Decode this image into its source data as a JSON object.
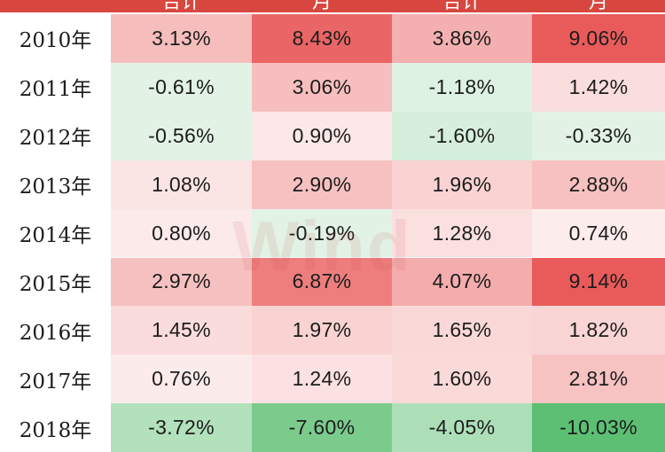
{
  "watermark": "Wind",
  "header": {
    "labels": [
      "合计",
      "月",
      "合计",
      "月"
    ]
  },
  "chart_data": {
    "type": "heatmap",
    "unit": "%",
    "rows": [
      {
        "year": "2010年",
        "values": [
          "3.13%",
          "8.43%",
          "3.86%",
          "9.06%"
        ],
        "nums": [
          3.13,
          8.43,
          3.86,
          9.06
        ]
      },
      {
        "year": "2011年",
        "values": [
          "-0.61%",
          "3.06%",
          "-1.18%",
          "1.42%"
        ],
        "nums": [
          -0.61,
          3.06,
          -1.18,
          1.42
        ]
      },
      {
        "year": "2012年",
        "values": [
          "-0.56%",
          "0.90%",
          "-1.60%",
          "-0.33%"
        ],
        "nums": [
          -0.56,
          0.9,
          -1.6,
          -0.33
        ]
      },
      {
        "year": "2013年",
        "values": [
          "1.08%",
          "2.90%",
          "1.96%",
          "2.88%"
        ],
        "nums": [
          1.08,
          2.9,
          1.96,
          2.88
        ]
      },
      {
        "year": "2014年",
        "values": [
          "0.80%",
          "-0.19%",
          "1.28%",
          "0.74%"
        ],
        "nums": [
          0.8,
          -0.19,
          1.28,
          0.74
        ]
      },
      {
        "year": "2015年",
        "values": [
          "2.97%",
          "6.87%",
          "4.07%",
          "9.14%"
        ],
        "nums": [
          2.97,
          6.87,
          4.07,
          9.14
        ]
      },
      {
        "year": "2016年",
        "values": [
          "1.45%",
          "1.97%",
          "1.65%",
          "1.82%"
        ],
        "nums": [
          1.45,
          1.97,
          1.65,
          1.82
        ]
      },
      {
        "year": "2017年",
        "values": [
          "0.76%",
          "1.24%",
          "1.60%",
          "2.81%"
        ],
        "nums": [
          0.76,
          1.24,
          1.6,
          2.81
        ]
      },
      {
        "year": "2018年",
        "values": [
          "-3.72%",
          "-7.60%",
          "-4.05%",
          "-10.03%"
        ],
        "nums": [
          -3.72,
          -7.6,
          -4.05,
          -10.03
        ]
      }
    ],
    "colors": {
      "positive_max": "#e95a5a",
      "negative_max": "#5cbf73",
      "neutral": "#ffffff"
    }
  }
}
